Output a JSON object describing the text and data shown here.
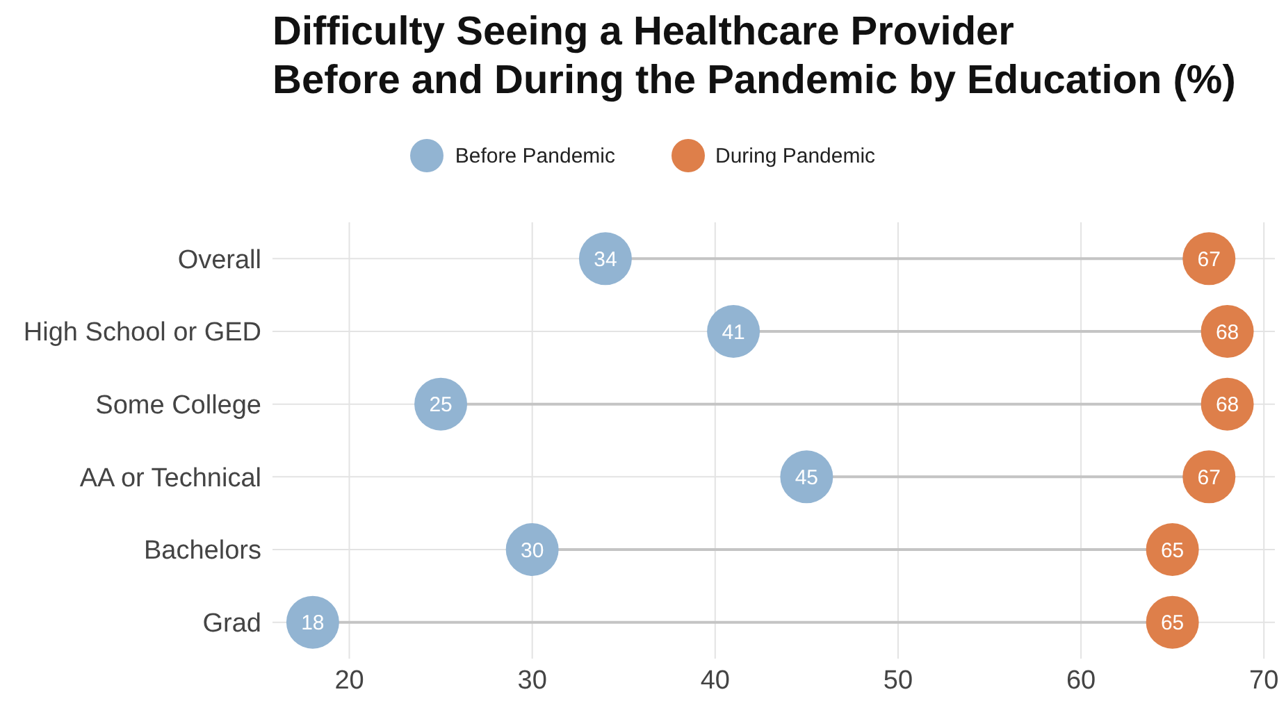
{
  "chart_data": {
    "type": "scatter",
    "title": "Difficulty Seeing a Healthcare Provider\nBefore and During the Pandemic by Education (%)",
    "orientation": "horizontal",
    "categories": [
      "Overall",
      "High School or GED",
      "Some College",
      "AA or Technical",
      "Bachelors",
      "Grad"
    ],
    "series": [
      {
        "name": "Before Pandemic",
        "color": "#92b4d2",
        "values": [
          34,
          41,
          25,
          45,
          30,
          18
        ]
      },
      {
        "name": "During Pandemic",
        "color": "#de7f4a",
        "values": [
          67,
          68,
          68,
          67,
          65,
          65
        ]
      }
    ],
    "xlim": [
      15.8,
      70.6
    ],
    "xticks": [
      20,
      30,
      40,
      50,
      60,
      70
    ],
    "grid": true,
    "legend": "top",
    "marker": "circle",
    "data_labels": true
  }
}
